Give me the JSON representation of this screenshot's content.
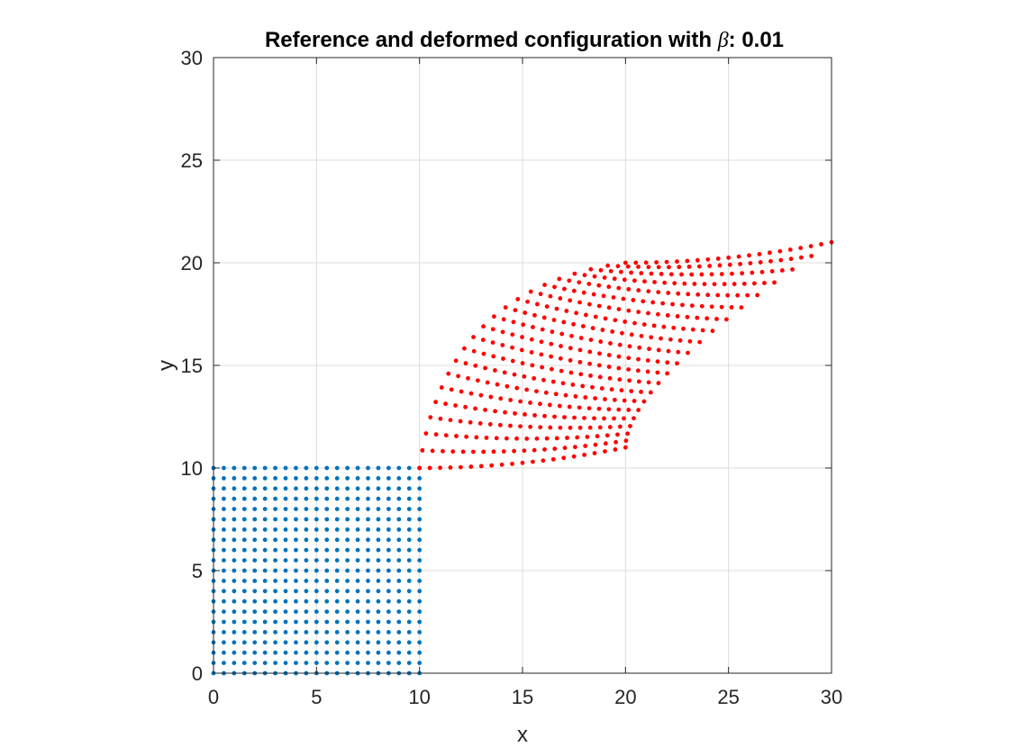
{
  "chart_data": {
    "type": "scatter",
    "title": {
      "prefix": "Reference and deformed configuration with ",
      "symbol": "β",
      "suffix": ": 0.01"
    },
    "xlabel": "x",
    "ylabel": "y",
    "xlim": [
      0,
      30
    ],
    "ylim": [
      0,
      30
    ],
    "xticks": [
      0,
      5,
      10,
      15,
      20,
      25,
      30
    ],
    "yticks": [
      0,
      5,
      10,
      15,
      20,
      25,
      30
    ],
    "grid": true,
    "legend": "none",
    "series": [
      {
        "color": "#0072BD",
        "grid_points": {
          "x_range": [
            0,
            10
          ],
          "y_range": [
            0,
            10
          ],
          "points_per_side": 21
        }
      },
      {
        "color": "#FF0000",
        "grid_points": {
          "points_per_side": 21,
          "corners": {
            "u0_v0": [
              10,
              10
            ],
            "u1_v0": [
              20,
              11
            ],
            "u0_v1": [
              20,
              20
            ],
            "u1_v1": [
              30,
              21
            ]
          },
          "boundary_midpoints": {
            "v0": [
              15,
              10.25
            ],
            "v1": [
              25,
              20.25
            ],
            "u0": [
              13.1,
              16.9
            ],
            "u1": [
              22.5,
              15.1
            ]
          }
        }
      }
    ]
  }
}
